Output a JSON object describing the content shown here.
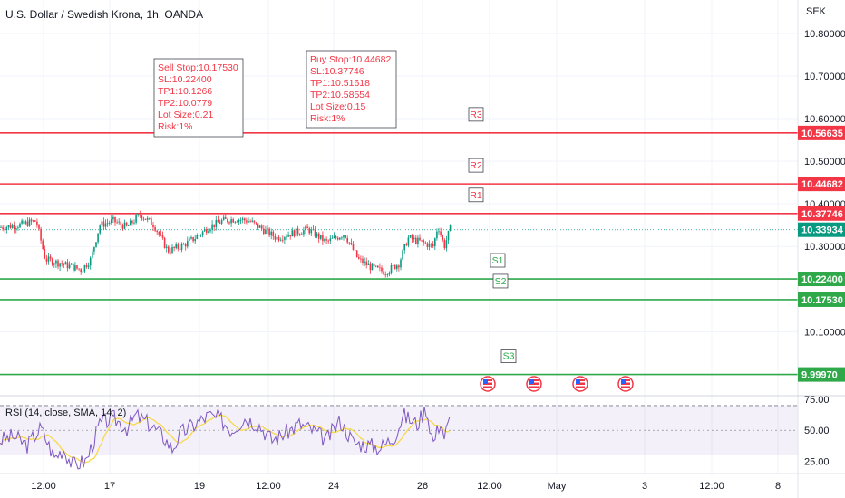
{
  "title": "U.S. Dollar / Swedish Krona, 1h, OANDA",
  "currency": "SEK",
  "chart_data": {
    "type": "candlestick",
    "main_y_range": [
      9.95,
      10.8783
    ],
    "main_y_ticks": [
      "10.80000",
      "10.70000",
      "10.60000",
      "10.50000",
      "10.40000",
      "10.30000",
      "10.10000"
    ],
    "last_price": "10.33934",
    "price_labels": [
      {
        "label": "10.56635",
        "value": 10.56635,
        "color": "#f23645"
      },
      {
        "label": "10.44682",
        "value": 10.44682,
        "color": "#f23645"
      },
      {
        "label": "10.37746",
        "value": 10.37746,
        "color": "#f23645"
      },
      {
        "label": "10.33934",
        "value": 10.33934,
        "color": "#089981"
      },
      {
        "label": "10.22400",
        "value": 10.224,
        "color": "#2fa84a"
      },
      {
        "label": "10.17530",
        "value": 10.1753,
        "color": "#2fa84a"
      },
      {
        "label": "9.99970",
        "value": 9.9997,
        "color": "#2fa84a"
      }
    ],
    "levels": [
      {
        "name": "R3",
        "value": 10.56635,
        "color": "#f23645"
      },
      {
        "name": "R2",
        "value": 10.44682,
        "color": "#f23645"
      },
      {
        "name": "R1",
        "value": 10.37746,
        "color": "#f23645"
      },
      {
        "name": "S1",
        "value": 10.224,
        "color": "#2fa84a"
      },
      {
        "name": "S2",
        "value": 10.1753,
        "color": "#2fa84a"
      },
      {
        "name": "S3",
        "value": 9.9997,
        "color": "#2fa84a"
      }
    ],
    "annotations": [
      {
        "lines": [
          "Sell Stop:10.17530",
          "SL:10.22400",
          "TP1:10.1266",
          "TP2:10.0779",
          "Lot Size:0.21",
          "Risk:1%"
        ]
      },
      {
        "lines": [
          "Buy Stop:10.44682",
          "SL:10.37746",
          "TP1:10.51618",
          "TP2:10.58554",
          "Lot Size:0.15",
          "Risk:1%"
        ]
      }
    ],
    "x_ticks": [
      "12:00",
      "17",
      "19",
      "12:00",
      "24",
      "26",
      "12:00",
      "May",
      "3",
      "12:00",
      "8"
    ],
    "rsi": {
      "label": "RSI (14, close, SMA, 14, 2)",
      "y_range": [
        15,
        78
      ],
      "ticks": [
        "75.00",
        "50.00",
        "25.00"
      ],
      "upper_band": 70,
      "mid": 50,
      "lower_band": 30,
      "line_color": "#7e57c2",
      "ma_color": "#f7d94c"
    },
    "bull_color": "#089981",
    "bear_color": "#f23645"
  }
}
